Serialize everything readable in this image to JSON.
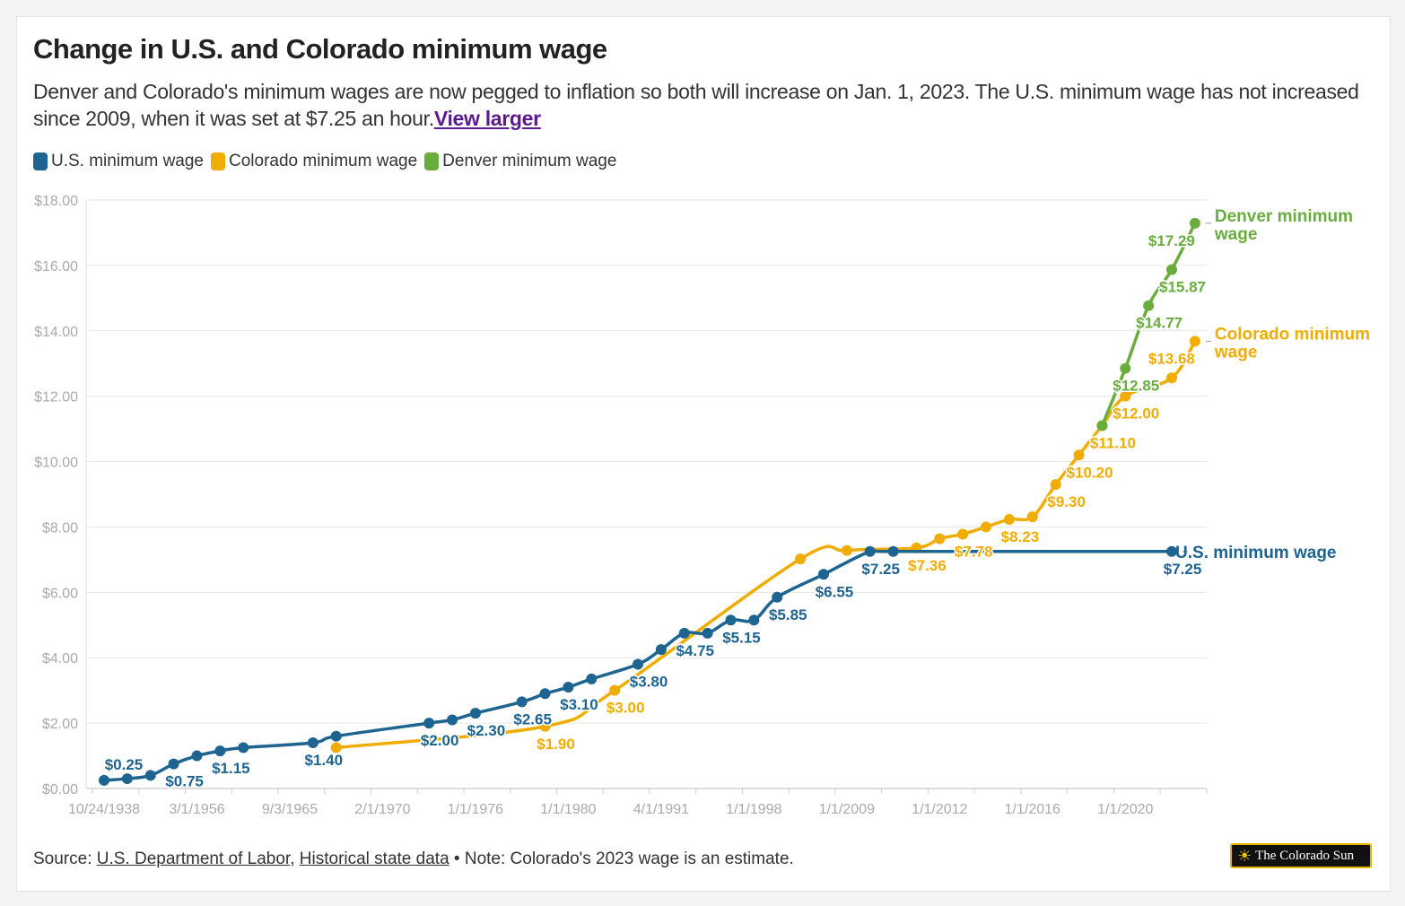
{
  "title": "Change in U.S. and Colorado minimum wage",
  "subtitle": "Denver and Colorado's minimum wages are now pegged to inflation so both will increase on Jan. 1, 2023. The U.S. minimum wage has not increased since 2009, when it was set at $7.25 an hour.",
  "subtitle_link": "View larger",
  "source": {
    "prefix": "Source: ",
    "link1": "U.S. Department of Labor",
    "sep": ", ",
    "link2": "Historical state data",
    "note": " • Note: Colorado's 2023 wage is an estimate."
  },
  "logo_text": "The Colorado Sun",
  "colors": {
    "us": "#1d6491",
    "colorado": "#f0ad00",
    "denver": "#6aad3f",
    "grid": "#e6e6e6",
    "axis": "#999999"
  },
  "chart_data": {
    "type": "line",
    "title": "Change in U.S. and Colorado minimum wage",
    "xlabel": "",
    "ylabel": "",
    "ylim": [
      0,
      18
    ],
    "yticks": [
      "$0.00",
      "$2.00",
      "$4.00",
      "$6.00",
      "$8.00",
      "$10.00",
      "$12.00",
      "$14.00",
      "$16.00",
      "$18.00"
    ],
    "category_count": 48,
    "xticks": [
      {
        "i": 0,
        "label": "10/24/1938"
      },
      {
        "i": 4,
        "label": "3/1/1956"
      },
      {
        "i": 8,
        "label": "9/3/1965"
      },
      {
        "i": 12,
        "label": "2/1/1970"
      },
      {
        "i": 16,
        "label": "1/1/1976"
      },
      {
        "i": 20,
        "label": "1/1/1980"
      },
      {
        "i": 24,
        "label": "4/1/1991"
      },
      {
        "i": 28,
        "label": "1/1/1998"
      },
      {
        "i": 32,
        "label": "1/1/2009"
      },
      {
        "i": 36,
        "label": "1/1/2012"
      },
      {
        "i": 40,
        "label": "1/1/2016"
      },
      {
        "i": 44,
        "label": "1/1/2020"
      }
    ],
    "grid": true,
    "legend_position": "top-left",
    "series": [
      {
        "key": "us",
        "name": "U.S. minimum wage",
        "end_label": "U.S. minimum wage",
        "points": [
          [
            0,
            0.25
          ],
          [
            1,
            0.3
          ],
          [
            2,
            0.4
          ],
          [
            3,
            0.75
          ],
          [
            4,
            1.0
          ],
          [
            5,
            1.15
          ],
          [
            6,
            1.25
          ],
          [
            9,
            1.4
          ],
          [
            10,
            1.6
          ],
          [
            14,
            2.0
          ],
          [
            15,
            2.1
          ],
          [
            16,
            2.3
          ],
          [
            18,
            2.65
          ],
          [
            19,
            2.9
          ],
          [
            20,
            3.1
          ],
          [
            21,
            3.35
          ],
          [
            23,
            3.8
          ],
          [
            24,
            4.25
          ],
          [
            25,
            4.75
          ],
          [
            26,
            4.75
          ],
          [
            27,
            5.15
          ],
          [
            28,
            5.15
          ],
          [
            29,
            5.85
          ],
          [
            31,
            6.55
          ],
          [
            33,
            7.25
          ],
          [
            34,
            7.25
          ],
          [
            46,
            7.25
          ]
        ],
        "labels": [
          [
            0,
            "$0.25",
            "above"
          ],
          [
            3,
            "$0.75",
            "below"
          ],
          [
            5,
            "$1.15",
            "below"
          ],
          [
            9,
            "$1.40",
            "below"
          ],
          [
            14,
            "$2.00",
            "below"
          ],
          [
            16,
            "$2.30",
            "below"
          ],
          [
            18,
            "$2.65",
            "below"
          ],
          [
            20,
            "$3.10",
            "below"
          ],
          [
            23,
            "$3.80",
            "below"
          ],
          [
            25,
            "$4.75",
            "below"
          ],
          [
            27,
            "$5.15",
            "below"
          ],
          [
            29,
            "$5.85",
            "below"
          ],
          [
            31,
            "$6.55",
            "below"
          ],
          [
            33,
            "$7.25",
            "below"
          ],
          [
            46,
            "$7.25",
            "below"
          ]
        ]
      },
      {
        "key": "colorado",
        "name": "Colorado minimum wage",
        "end_label": "Colorado minimum wage",
        "points": [
          [
            10,
            1.25
          ],
          [
            19,
            1.9
          ],
          [
            22,
            3.0
          ],
          [
            30,
            7.02
          ],
          [
            32,
            7.28
          ],
          [
            35,
            7.36
          ],
          [
            36,
            7.64
          ],
          [
            37,
            7.78
          ],
          [
            38,
            8.0
          ],
          [
            39,
            8.23
          ],
          [
            40,
            8.31
          ],
          [
            41,
            9.3
          ],
          [
            42,
            10.2
          ],
          [
            43,
            11.1
          ],
          [
            44,
            12.0
          ],
          [
            46,
            12.56
          ],
          [
            47,
            13.68
          ]
        ],
        "labels": [
          [
            19,
            "$1.90",
            "below"
          ],
          [
            22,
            "$3.00",
            "below"
          ],
          [
            35,
            "$7.36",
            "below"
          ],
          [
            37,
            "$7.78",
            "below"
          ],
          [
            39,
            "$8.23",
            "below"
          ],
          [
            41,
            "$9.30",
            "below"
          ],
          [
            42,
            "$10.20",
            "below"
          ],
          [
            43,
            "$11.10",
            "below"
          ],
          [
            44,
            "$12.00",
            "below"
          ],
          [
            47,
            "$13.68",
            "below-left"
          ]
        ]
      },
      {
        "key": "denver",
        "name": "Denver minimum wage",
        "end_label": "Denver minimum wage",
        "points": [
          [
            43,
            11.1
          ],
          [
            44,
            12.85
          ],
          [
            45,
            14.77
          ],
          [
            46,
            15.87
          ],
          [
            47,
            17.29
          ]
        ],
        "labels": [
          [
            44,
            "$12.85",
            "below"
          ],
          [
            45,
            "$14.77",
            "below"
          ],
          [
            46,
            "$15.87",
            "below"
          ],
          [
            47,
            "$17.29",
            "below-left"
          ]
        ]
      }
    ]
  }
}
